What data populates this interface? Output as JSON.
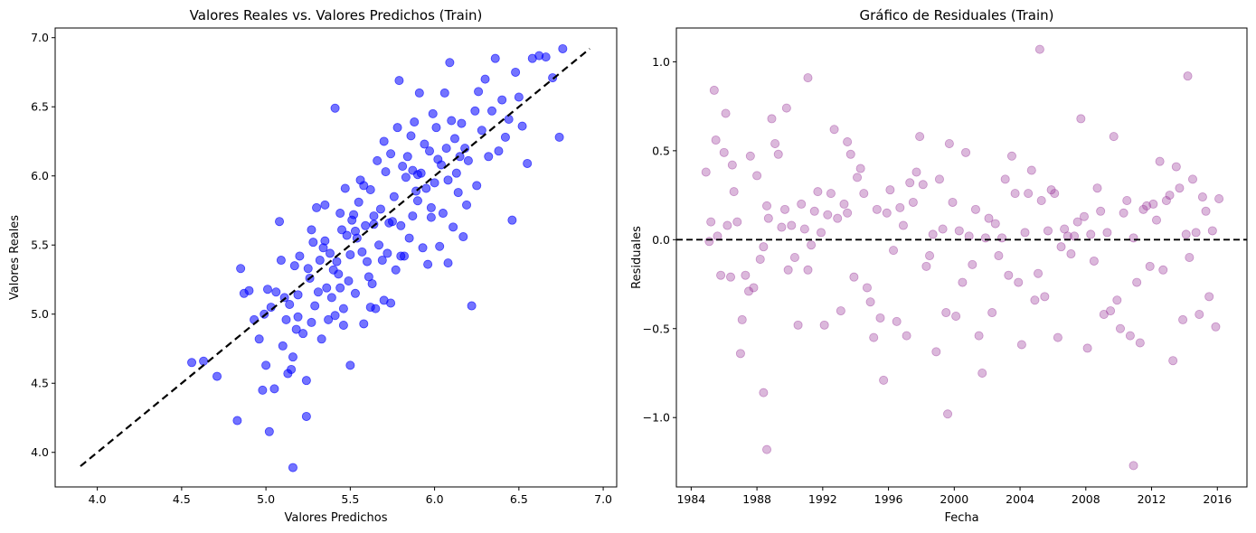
{
  "chart_data": [
    {
      "type": "scatter",
      "title": "Valores Reales vs. Valores Predichos (Train)",
      "xlabel": "Valores Predichos",
      "ylabel": "Valores Reales",
      "xlim": [
        3.75,
        7.08
      ],
      "ylim": [
        3.75,
        7.07
      ],
      "xticks": [
        "4.0",
        "4.5",
        "5.0",
        "5.5",
        "6.0",
        "6.5",
        "7.0"
      ],
      "yticks": [
        "4.0",
        "4.5",
        "5.0",
        "5.5",
        "6.0",
        "6.5",
        "7.0"
      ],
      "point_color": "#0000ff",
      "point_alpha": 0.55,
      "reference_line": {
        "from": [
          3.9,
          3.9
        ],
        "to": [
          6.92,
          6.92
        ],
        "style": "dashed",
        "color": "#000000"
      },
      "grid": false,
      "legend": "none",
      "series": [
        {
          "x": [
            4.56,
            4.63,
            4.71,
            4.83,
            4.85,
            4.87,
            4.9,
            4.93,
            4.96,
            4.98,
            4.99,
            5.0,
            5.01,
            5.02,
            5.03,
            5.05,
            5.06,
            5.08,
            5.09,
            5.1,
            5.11,
            5.12,
            5.13,
            5.14,
            5.15,
            5.16,
            5.17,
            5.18,
            5.19,
            5.2,
            5.22,
            5.24,
            5.25,
            5.26,
            5.27,
            5.28,
            5.29,
            5.3,
            5.31,
            5.32,
            5.33,
            5.34,
            5.35,
            5.36,
            5.37,
            5.38,
            5.39,
            5.4,
            5.41,
            5.42,
            5.43,
            5.44,
            5.45,
            5.46,
            5.47,
            5.48,
            5.49,
            5.5,
            5.51,
            5.52,
            5.53,
            5.54,
            5.55,
            5.56,
            5.57,
            5.58,
            5.59,
            5.6,
            5.61,
            5.62,
            5.63,
            5.64,
            5.65,
            5.66,
            5.67,
            5.68,
            5.69,
            5.7,
            5.71,
            5.72,
            5.73,
            5.74,
            5.75,
            5.76,
            5.77,
            5.78,
            5.79,
            5.8,
            5.81,
            5.82,
            5.83,
            5.84,
            5.85,
            5.86,
            5.87,
            5.88,
            5.89,
            5.9,
            5.91,
            5.92,
            5.93,
            5.94,
            5.95,
            5.96,
            5.97,
            5.98,
            5.99,
            6.0,
            6.01,
            6.02,
            6.03,
            6.04,
            6.05,
            6.06,
            6.07,
            6.08,
            6.09,
            6.1,
            6.11,
            6.12,
            6.13,
            6.14,
            6.15,
            6.16,
            6.17,
            6.18,
            6.19,
            6.2,
            6.22,
            6.24,
            6.25,
            6.26,
            6.28,
            6.3,
            6.32,
            6.34,
            6.36,
            6.38,
            6.4,
            6.42,
            6.44,
            6.46,
            6.48,
            6.5,
            6.52,
            6.55,
            6.58,
            6.62,
            6.66,
            6.7,
            6.74,
            6.76,
            5.16,
            5.24,
            5.5,
            5.7,
            5.46,
            5.53,
            5.35,
            5.64,
            5.8,
            5.98,
            6.08,
            5.41,
            5.74,
            5.9,
            5.58,
            5.62,
            5.44,
            5.27,
            5.19,
            5.87
          ],
          "y": [
            4.65,
            4.66,
            4.55,
            4.23,
            5.33,
            5.15,
            5.17,
            4.96,
            4.82,
            4.45,
            5.0,
            4.63,
            5.18,
            4.15,
            5.05,
            4.46,
            5.16,
            5.67,
            5.39,
            4.77,
            5.12,
            4.96,
            4.57,
            5.07,
            4.6,
            3.89,
            5.35,
            4.89,
            5.14,
            5.42,
            4.86,
            4.26,
            5.33,
            5.26,
            5.61,
            5.52,
            5.06,
            5.77,
            5.16,
            5.39,
            4.82,
            5.48,
            5.53,
            5.19,
            4.96,
            5.44,
            5.12,
            5.32,
            6.49,
            5.38,
            5.29,
            5.73,
            5.61,
            5.04,
            5.91,
            5.57,
            5.24,
            5.43,
            5.68,
            5.72,
            5.15,
            5.55,
            5.81,
            5.97,
            5.45,
            4.93,
            5.64,
            5.38,
            5.27,
            5.9,
            5.22,
            5.71,
            5.04,
            6.11,
            5.5,
            5.76,
            5.39,
            6.25,
            6.03,
            5.44,
            5.66,
            6.16,
            5.67,
            5.85,
            5.32,
            6.35,
            6.69,
            5.64,
            6.07,
            5.42,
            5.99,
            6.14,
            5.55,
            6.29,
            5.71,
            6.39,
            5.89,
            6.01,
            6.6,
            6.02,
            5.48,
            6.23,
            5.91,
            5.36,
            6.18,
            5.77,
            6.45,
            5.95,
            6.35,
            6.12,
            5.49,
            6.08,
            5.73,
            6.6,
            6.2,
            5.97,
            6.82,
            6.4,
            5.63,
            6.27,
            6.02,
            5.88,
            6.14,
            6.38,
            5.56,
            6.2,
            5.79,
            6.11,
            5.06,
            6.47,
            5.93,
            6.61,
            6.33,
            6.7,
            6.14,
            6.47,
            6.85,
            6.18,
            6.55,
            6.28,
            6.41,
            5.68,
            6.75,
            6.57,
            6.36,
            6.09,
            6.85,
            6.87,
            6.86,
            6.71,
            6.28,
            6.92,
            4.69,
            4.52,
            4.63,
            5.1,
            4.92,
            5.6,
            5.79,
            5.65,
            5.42,
            5.7,
            5.37,
            4.99,
            5.08,
            5.82,
            5.93,
            5.05,
            5.19,
            4.94,
            4.98,
            6.04
          ]
        }
      ]
    },
    {
      "type": "scatter",
      "title": "Gráfico de Residuales (Train)",
      "xlabel": "Fecha",
      "ylabel": "Residuales",
      "xlim": [
        1983.1,
        2017.8
      ],
      "ylim": [
        -1.39,
        1.19
      ],
      "xticks": [
        "1984",
        "1988",
        "1992",
        "1996",
        "2000",
        "2004",
        "2008",
        "2012",
        "2016"
      ],
      "yticks": [
        "−1.0",
        "−0.5",
        "0.0",
        "0.5",
        "1.0"
      ],
      "point_color": "#993399",
      "point_alpha": 0.35,
      "reference_line": {
        "y": 0,
        "style": "dashed",
        "color": "#000000"
      },
      "grid": false,
      "legend": "none",
      "series": [
        {
          "x": [
            1984.9,
            1985.1,
            1985.2,
            1985.4,
            1985.5,
            1985.6,
            1985.8,
            1986.0,
            1986.2,
            1986.4,
            1986.5,
            1986.6,
            1986.8,
            1987.0,
            1987.1,
            1987.3,
            1987.5,
            1987.6,
            1987.8,
            1988.0,
            1988.2,
            1988.4,
            1988.6,
            1988.7,
            1988.9,
            1989.1,
            1989.3,
            1989.5,
            1989.7,
            1989.9,
            1990.1,
            1990.3,
            1990.5,
            1990.7,
            1990.9,
            1991.1,
            1991.3,
            1991.5,
            1991.7,
            1991.9,
            1992.1,
            1992.3,
            1992.5,
            1992.7,
            1992.9,
            1993.1,
            1993.3,
            1993.5,
            1993.7,
            1993.9,
            1994.1,
            1994.3,
            1994.5,
            1994.7,
            1994.9,
            1995.1,
            1995.3,
            1995.5,
            1995.7,
            1995.9,
            1996.1,
            1996.3,
            1996.5,
            1996.7,
            1996.9,
            1997.1,
            1997.3,
            1997.5,
            1997.7,
            1997.9,
            1998.1,
            1998.3,
            1998.5,
            1998.7,
            1998.9,
            1999.1,
            1999.3,
            1999.5,
            1999.7,
            1999.9,
            2000.1,
            2000.3,
            2000.5,
            2000.7,
            2000.9,
            2001.1,
            2001.3,
            2001.5,
            2001.7,
            2001.9,
            2002.1,
            2002.3,
            2002.5,
            2002.7,
            2002.9,
            2003.1,
            2003.3,
            2003.5,
            2003.7,
            2003.9,
            2004.1,
            2004.3,
            2004.5,
            2004.7,
            2004.9,
            2005.1,
            2005.3,
            2005.5,
            2005.7,
            2005.9,
            2006.1,
            2006.3,
            2006.5,
            2006.7,
            2006.9,
            2007.1,
            2007.3,
            2007.5,
            2007.7,
            2007.9,
            2008.1,
            2008.3,
            2008.5,
            2008.7,
            2008.9,
            2009.1,
            2009.3,
            2009.5,
            2009.7,
            2009.9,
            2010.1,
            2010.3,
            2010.5,
            2010.7,
            2010.9,
            2011.1,
            2011.3,
            2011.5,
            2011.7,
            2011.9,
            2012.1,
            2012.3,
            2012.5,
            2012.7,
            2012.9,
            2013.1,
            2013.3,
            2013.5,
            2013.7,
            2013.9,
            2014.1,
            2014.3,
            2014.5,
            2014.7,
            2014.9,
            2015.1,
            2015.3,
            2015.5,
            2015.7,
            2015.9,
            2016.1,
            1988.6,
            1988.4,
            1991.1,
            1999.6,
            2005.2,
            2014.2,
            2010.9,
            1986.1,
            1989.8,
            1993.5
          ],
          "y": [
            0.38,
            -0.01,
            0.1,
            0.84,
            0.56,
            0.02,
            -0.2,
            0.49,
            0.08,
            -0.21,
            0.42,
            0.27,
            0.1,
            -0.64,
            -0.45,
            -0.2,
            -0.29,
            0.47,
            -0.27,
            0.36,
            -0.11,
            -0.04,
            0.19,
            0.12,
            0.68,
            0.54,
            0.48,
            0.07,
            0.17,
            -0.17,
            0.08,
            -0.1,
            -0.48,
            0.2,
            0.06,
            -0.17,
            -0.03,
            0.16,
            0.27,
            0.04,
            -0.48,
            0.14,
            0.26,
            0.62,
            0.12,
            -0.4,
            0.2,
            0.15,
            0.48,
            -0.21,
            0.35,
            0.4,
            0.26,
            -0.27,
            -0.35,
            -0.55,
            0.17,
            -0.44,
            -0.79,
            0.15,
            0.28,
            -0.06,
            -0.46,
            0.18,
            0.08,
            -0.54,
            0.32,
            0.21,
            0.38,
            0.58,
            0.31,
            -0.15,
            -0.09,
            0.03,
            -0.63,
            0.34,
            0.06,
            -0.41,
            0.54,
            0.21,
            -0.43,
            0.05,
            -0.24,
            0.49,
            0.02,
            -0.14,
            0.17,
            -0.54,
            -0.75,
            0.01,
            0.12,
            -0.41,
            0.09,
            -0.09,
            0.01,
            0.34,
            -0.2,
            0.47,
            0.26,
            -0.24,
            -0.59,
            0.04,
            0.26,
            0.39,
            -0.34,
            -0.19,
            0.22,
            -0.32,
            0.05,
            0.28,
            0.26,
            -0.55,
            -0.04,
            0.06,
            0.02,
            -0.08,
            0.02,
            0.1,
            0.68,
            0.13,
            -0.61,
            0.03,
            -0.12,
            0.29,
            0.16,
            -0.42,
            0.04,
            -0.4,
            0.58,
            -0.34,
            -0.5,
            0.15,
            0.22,
            -0.54,
            0.01,
            -0.24,
            -0.58,
            0.17,
            0.19,
            -0.15,
            0.2,
            0.11,
            0.44,
            -0.17,
            0.22,
            0.25,
            -0.68,
            0.41,
            0.29,
            -0.45,
            0.03,
            -0.1,
            0.34,
            0.04,
            -0.42,
            0.24,
            0.16,
            -0.32,
            0.05,
            -0.49,
            0.23,
            -1.18,
            -0.86,
            0.91,
            -0.98,
            1.07,
            0.92,
            -1.27,
            0.71,
            0.74,
            0.55
          ]
        }
      ]
    }
  ]
}
